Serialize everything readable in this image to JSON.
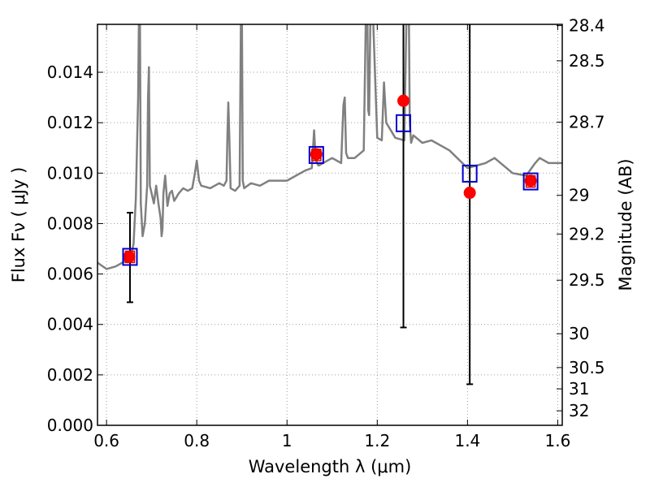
{
  "chart_data": {
    "type": "line",
    "xlabel": "Wavelength  λ (μm)",
    "ylabel": "Flux  Fν  ( μJy )",
    "y2label": "Magnitude (AB)",
    "xlim": [
      0.58,
      1.61
    ],
    "ylim": [
      0.0,
      0.0159
    ],
    "grid": true,
    "x_ticks": [
      0.6,
      0.8,
      1.0,
      1.2,
      1.4,
      1.6
    ],
    "x_tick_labels": [
      "0.6",
      "0.8",
      "1",
      "1.2",
      "1.4",
      "1.6"
    ],
    "y_ticks": [
      0.0,
      0.002,
      0.004,
      0.006,
      0.008,
      0.01,
      0.012,
      0.014
    ],
    "y_tick_labels": [
      "0.000",
      "0.002",
      "0.004",
      "0.006",
      "0.008",
      "0.010",
      "0.012",
      "0.014"
    ],
    "mag_ticks": [
      "28.4",
      "28.5",
      "28.7",
      "29",
      "29.2",
      "29.5",
      "30",
      "30.5",
      "31",
      "32"
    ],
    "colors": {
      "spectrum": "#808080",
      "observed": "#ff0000",
      "model_outer": "#0000cc",
      "model_inner": "#dd0000",
      "errorbar": "#000000",
      "grid": "#9e9e9e"
    },
    "series": [
      {
        "name": "model spectrum",
        "style": "line",
        "x": [
          0.58,
          0.6,
          0.62,
          0.64,
          0.65,
          0.655,
          0.66,
          0.665,
          0.67,
          0.672,
          0.674,
          0.676,
          0.68,
          0.685,
          0.69,
          0.692,
          0.694,
          0.696,
          0.7,
          0.705,
          0.71,
          0.715,
          0.72,
          0.722,
          0.724,
          0.726,
          0.73,
          0.735,
          0.74,
          0.745,
          0.75,
          0.76,
          0.77,
          0.78,
          0.79,
          0.795,
          0.8,
          0.805,
          0.81,
          0.83,
          0.85,
          0.86,
          0.866,
          0.868,
          0.87,
          0.872,
          0.875,
          0.885,
          0.895,
          0.898,
          0.9,
          0.902,
          0.905,
          0.92,
          0.94,
          0.96,
          0.98,
          1.0,
          1.02,
          1.04,
          1.055,
          1.06,
          1.063,
          1.066,
          1.07,
          1.09,
          1.1,
          1.12,
          1.125,
          1.128,
          1.131,
          1.135,
          1.15,
          1.17,
          1.175,
          1.178,
          1.18,
          1.182,
          1.185,
          1.19,
          1.2,
          1.21,
          1.215,
          1.22,
          1.24,
          1.26,
          1.265,
          1.27,
          1.272,
          1.275,
          1.28,
          1.3,
          1.32,
          1.36,
          1.4,
          1.42,
          1.44,
          1.46,
          1.5,
          1.53,
          1.55,
          1.56,
          1.58,
          1.6,
          1.61
        ],
        "y": [
          0.00645,
          0.0062,
          0.0063,
          0.0065,
          0.0066,
          0.0068,
          0.0072,
          0.009,
          0.013,
          0.0165,
          0.0165,
          0.0088,
          0.0075,
          0.008,
          0.0095,
          0.013,
          0.0142,
          0.0095,
          0.0092,
          0.0088,
          0.0095,
          0.0088,
          0.0082,
          0.0075,
          0.0078,
          0.0092,
          0.0099,
          0.0087,
          0.0092,
          0.0093,
          0.0089,
          0.0092,
          0.0094,
          0.0093,
          0.0094,
          0.0099,
          0.0105,
          0.0097,
          0.0095,
          0.0094,
          0.0096,
          0.0095,
          0.0097,
          0.0115,
          0.0128,
          0.0115,
          0.0094,
          0.0093,
          0.0095,
          0.0165,
          0.0165,
          0.0097,
          0.0094,
          0.0096,
          0.0095,
          0.0097,
          0.0097,
          0.0097,
          0.0099,
          0.0101,
          0.0102,
          0.0117,
          0.0107,
          0.0104,
          0.0103,
          0.0105,
          0.0106,
          0.0104,
          0.0127,
          0.013,
          0.0108,
          0.0106,
          0.0106,
          0.0109,
          0.0165,
          0.0165,
          0.0125,
          0.0123,
          0.0165,
          0.0165,
          0.0114,
          0.0113,
          0.0136,
          0.012,
          0.0114,
          0.0113,
          0.0165,
          0.0165,
          0.012,
          0.0112,
          0.0115,
          0.0112,
          0.0113,
          0.0109,
          0.0102,
          0.0103,
          0.0104,
          0.0106,
          0.01,
          0.0099,
          0.0104,
          0.0106,
          0.0104,
          0.0104,
          0.0104
        ]
      },
      {
        "name": "observed flux",
        "style": "points",
        "x": [
          0.65,
          1.065,
          1.258,
          1.405,
          1.54
        ],
        "y": [
          0.00668,
          0.01075,
          0.01287,
          0.00922,
          0.0097
        ]
      },
      {
        "name": "model photometry",
        "style": "squares",
        "x": [
          0.652,
          1.065,
          1.258,
          1.405,
          1.54
        ],
        "y": [
          0.00668,
          0.01072,
          0.01198,
          0.00998,
          0.00967
        ]
      }
    ],
    "errorbars": [
      {
        "x": 0.652,
        "low": 0.00488,
        "high": 0.00843
      },
      {
        "x": 1.258,
        "low": 0.00388,
        "high": 0.0159
      },
      {
        "x": 1.405,
        "low": 0.00163,
        "high": 0.0159
      }
    ]
  }
}
